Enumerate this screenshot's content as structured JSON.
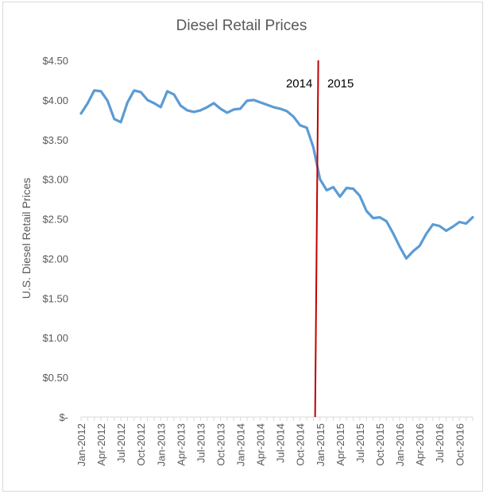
{
  "chart_data": {
    "type": "line",
    "title": "Diesel Retail Prices",
    "xlabel": "",
    "ylabel": "U.S. Diesel Retail Prices",
    "ylim": [
      0,
      4.5
    ],
    "y_ticks": [
      0,
      0.5,
      1.0,
      1.5,
      2.0,
      2.5,
      3.0,
      3.5,
      4.0,
      4.5
    ],
    "y_tick_labels": [
      "$-",
      "$0.50",
      "$1.00",
      "$1.50",
      "$2.00",
      "$2.50",
      "$3.00",
      "$3.50",
      "$4.00",
      "$4.50"
    ],
    "x_tick_labels": [
      "Jan-2012",
      "Apr-2012",
      "Jul-2012",
      "Oct-2012",
      "Jan-2013",
      "Apr-2013",
      "Jul-2013",
      "Oct-2013",
      "Jan-2014",
      "Apr-2014",
      "Jul-2014",
      "Oct-2014",
      "Jan-2015",
      "Apr-2015",
      "Jul-2015",
      "Oct-2015",
      "Jan-2016",
      "Apr-2016",
      "Jul-2016",
      "Oct-2016"
    ],
    "grid": false,
    "legend": "none",
    "series": [
      {
        "name": "U.S. Diesel Retail Prices",
        "color": "#5b9bd5",
        "x": [
          "Jan-2012",
          "Feb-2012",
          "Mar-2012",
          "Apr-2012",
          "May-2012",
          "Jun-2012",
          "Jul-2012",
          "Aug-2012",
          "Sep-2012",
          "Oct-2012",
          "Nov-2012",
          "Dec-2012",
          "Jan-2013",
          "Feb-2013",
          "Mar-2013",
          "Apr-2013",
          "May-2013",
          "Jun-2013",
          "Jul-2013",
          "Aug-2013",
          "Sep-2013",
          "Oct-2013",
          "Nov-2013",
          "Dec-2013",
          "Jan-2014",
          "Feb-2014",
          "Mar-2014",
          "Apr-2014",
          "May-2014",
          "Jun-2014",
          "Jul-2014",
          "Aug-2014",
          "Sep-2014",
          "Oct-2014",
          "Nov-2014",
          "Dec-2014",
          "Jan-2015",
          "Feb-2015",
          "Mar-2015",
          "Apr-2015",
          "May-2015",
          "Jun-2015",
          "Jul-2015",
          "Aug-2015",
          "Sep-2015",
          "Oct-2015",
          "Nov-2015",
          "Dec-2015",
          "Jan-2016",
          "Feb-2016",
          "Mar-2016",
          "Apr-2016",
          "May-2016",
          "Jun-2016",
          "Jul-2016",
          "Aug-2016",
          "Sep-2016",
          "Oct-2016",
          "Nov-2016",
          "Dec-2016"
        ],
        "values": [
          3.83,
          3.96,
          4.12,
          4.11,
          3.99,
          3.76,
          3.72,
          3.97,
          4.12,
          4.1,
          4.0,
          3.96,
          3.91,
          4.11,
          4.07,
          3.93,
          3.87,
          3.85,
          3.87,
          3.91,
          3.96,
          3.89,
          3.84,
          3.88,
          3.89,
          3.99,
          4.0,
          3.97,
          3.94,
          3.91,
          3.89,
          3.86,
          3.79,
          3.68,
          3.65,
          3.4,
          3.0,
          2.86,
          2.9,
          2.78,
          2.89,
          2.88,
          2.79,
          2.6,
          2.51,
          2.52,
          2.47,
          2.32,
          2.15,
          2.0,
          2.09,
          2.16,
          2.31,
          2.43,
          2.41,
          2.35,
          2.4,
          2.46,
          2.44,
          2.52
        ]
      }
    ],
    "divider": {
      "color": "#c00000",
      "between": [
        "Dec-2014",
        "Jan-2015"
      ],
      "left_label": "2014",
      "right_label": "2015"
    }
  }
}
